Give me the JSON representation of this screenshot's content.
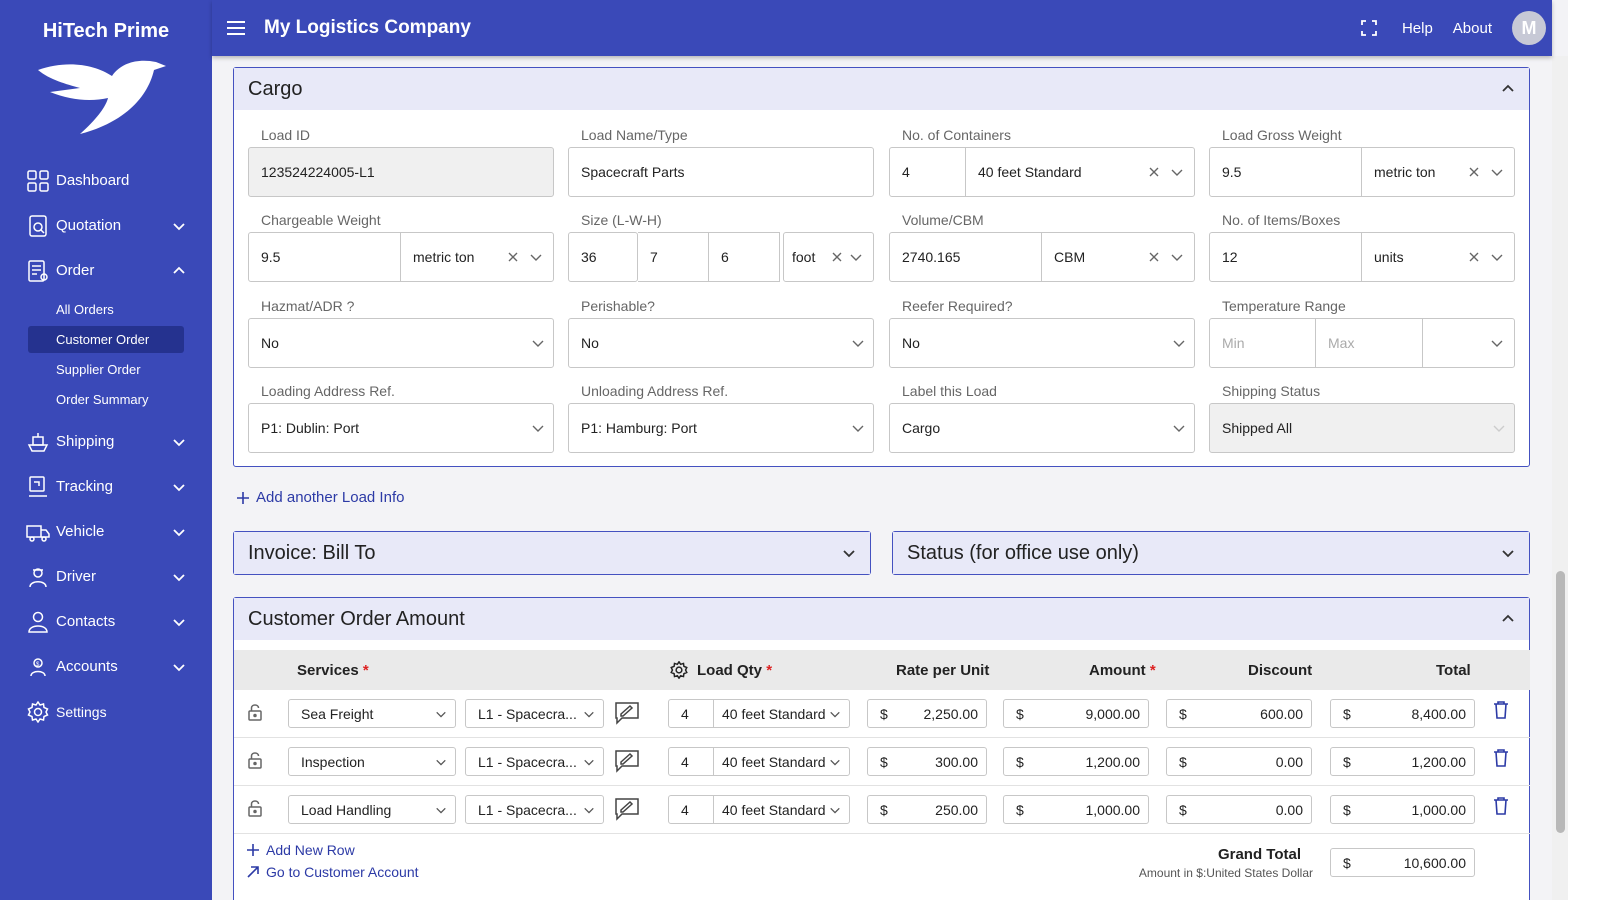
{
  "app": {
    "brand": "HiTech Prime",
    "company": "My Logistics Company",
    "help": "Help",
    "about": "About",
    "avatar_initial": "M"
  },
  "sidebar": {
    "items": [
      {
        "label": "Dashboard",
        "icon": "dashboard-icon"
      },
      {
        "label": "Quotation",
        "icon": "quotation-icon"
      },
      {
        "label": "Order",
        "icon": "order-icon"
      },
      {
        "label": "Shipping",
        "icon": "shipping-icon"
      },
      {
        "label": "Tracking",
        "icon": "tracking-icon"
      },
      {
        "label": "Vehicle",
        "icon": "vehicle-icon"
      },
      {
        "label": "Driver",
        "icon": "driver-icon"
      },
      {
        "label": "Contacts",
        "icon": "contacts-icon"
      },
      {
        "label": "Accounts",
        "icon": "accounts-icon"
      },
      {
        "label": "Settings",
        "icon": "settings-icon"
      }
    ],
    "order_sub": [
      "All Orders",
      "Customer Order",
      "Supplier Order",
      "Order Summary"
    ]
  },
  "cargo": {
    "title": "Cargo",
    "load_id": {
      "label": "Load ID",
      "value": "123524224005-L1"
    },
    "load_name": {
      "label": "Load Name/Type",
      "value": "Spacecraft Parts"
    },
    "containers": {
      "label": "No. of Containers",
      "qty": "4",
      "type": "40 feet Standard"
    },
    "gross_weight": {
      "label": "Load Gross Weight",
      "value": "9.5",
      "unit": "metric ton"
    },
    "chargeable_weight": {
      "label": "Chargeable Weight",
      "value": "9.5",
      "unit": "metric ton"
    },
    "size": {
      "label": "Size (L-W-H)",
      "l": "36",
      "w": "7",
      "h": "6",
      "unit": "foot"
    },
    "volume": {
      "label": "Volume/CBM",
      "value": "2740.165",
      "unit": "CBM"
    },
    "items": {
      "label": "No. of Items/Boxes",
      "value": "12",
      "unit": "units"
    },
    "hazmat": {
      "label": "Hazmat/ADR ?",
      "value": "No"
    },
    "perishable": {
      "label": "Perishable?",
      "value": "No"
    },
    "reefer": {
      "label": "Reefer Required?",
      "value": "No"
    },
    "temperature": {
      "label": "Temperature Range",
      "min_placeholder": "Min",
      "max_placeholder": "Max"
    },
    "loading": {
      "label": "Loading Address Ref.",
      "value": "P1: Dublin: Port"
    },
    "unloading": {
      "label": "Unloading Address Ref.",
      "value": "P1: Hamburg: Port"
    },
    "label_load": {
      "label": "Label this Load",
      "value": "Cargo"
    },
    "shipping_status": {
      "label": "Shipping Status",
      "value": "Shipped All"
    }
  },
  "add_load": "Add another Load Info",
  "invoice_title": "Invoice: Bill To",
  "status_title": "Status (for office use only)",
  "amount": {
    "title": "Customer Order Amount",
    "headers": {
      "services": "Services",
      "load_qty": "Load Qty",
      "rate": "Rate per Unit",
      "amount": "Amount",
      "discount": "Discount",
      "total": "Total"
    },
    "currency": "$",
    "rows": [
      {
        "service": "Sea Freight",
        "load": "L1 - Spacecra...",
        "qty": "4",
        "unit": "40 feet Standard",
        "rate": "2,250.00",
        "amount": "9,000.00",
        "discount": "600.00",
        "total": "8,400.00"
      },
      {
        "service": "Inspection",
        "load": "L1 - Spacecra...",
        "qty": "4",
        "unit": "40 feet Standard",
        "rate": "300.00",
        "amount": "1,200.00",
        "discount": "0.00",
        "total": "1,200.00"
      },
      {
        "service": "Load Handling",
        "load": "L1 - Spacecra...",
        "qty": "4",
        "unit": "40 feet Standard",
        "rate": "250.00",
        "amount": "1,000.00",
        "discount": "0.00",
        "total": "1,000.00"
      }
    ],
    "add_row": "Add New Row",
    "go_account": "Go to Customer Account",
    "grand_total_label": "Grand Total",
    "grand_total": "10,600.00",
    "amount_note": "Amount in $:United States Dollar"
  },
  "colors": {
    "primary": "#3a49b8",
    "active": "#25328f",
    "panel_head": "#e8e9f8",
    "required": "#d22222"
  }
}
